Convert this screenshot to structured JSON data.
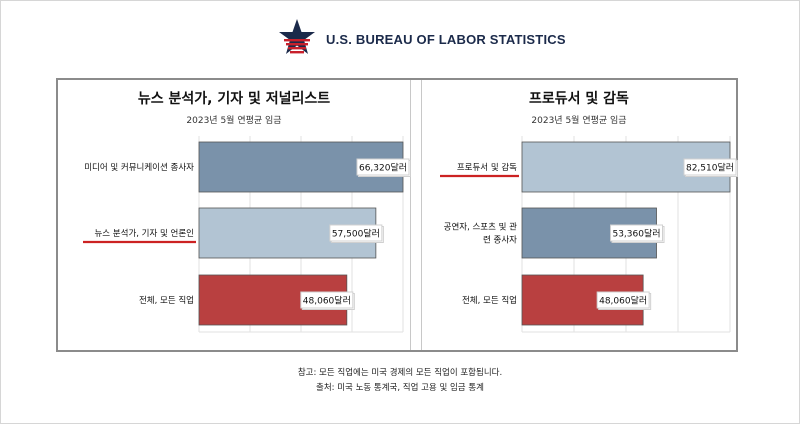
{
  "header": {
    "agency": "U.S. BUREAU OF LABOR STATISTICS"
  },
  "chart_data": [
    {
      "type": "bar",
      "orientation": "horizontal",
      "title": "뉴스 분석가, 기자 및 저널리스트",
      "subtitle": "2023년 5월 연평균 임금",
      "categories": [
        "미디어 및 커뮤니케이션 종사자",
        "뉴스 분석가, 기자 및 언론인",
        "전체, 모든 직업"
      ],
      "values": [
        66320,
        57500,
        48060
      ],
      "value_labels": [
        "66,320달러",
        "57,500달러",
        "48,060달러"
      ],
      "colors": [
        "#7a92aa",
        "#b2c4d3",
        "#b94040"
      ],
      "highlighted_category": "뉴스 분석가, 기자 및 언론인",
      "xlim": [
        0,
        66320
      ],
      "grid": true
    },
    {
      "type": "bar",
      "orientation": "horizontal",
      "title": "프로듀서 및 감독",
      "subtitle": "2023년 5월 연평균 임금",
      "categories": [
        "프로듀서 및 감독",
        "공연자, 스포츠 및 관련 종사자",
        "전체, 모든 직업"
      ],
      "values": [
        82510,
        53360,
        48060
      ],
      "value_labels": [
        "82,510달러",
        "53,360달러",
        "48,060달러"
      ],
      "colors": [
        "#b2c4d3",
        "#7a92aa",
        "#b94040"
      ],
      "highlighted_category": "프로듀서 및 감독",
      "xlim": [
        0,
        82510
      ],
      "grid": true
    }
  ],
  "notes": {
    "line1": "참고: 모든 직업에는 미국 경제의 모든 직업이 포함됩니다.",
    "line2": "출처: 미국 노동 통계국, 직업 고용 및 임금 통계"
  },
  "colors": {
    "highlight_underline": "#cc2222",
    "navy": "#1b2a4a"
  }
}
